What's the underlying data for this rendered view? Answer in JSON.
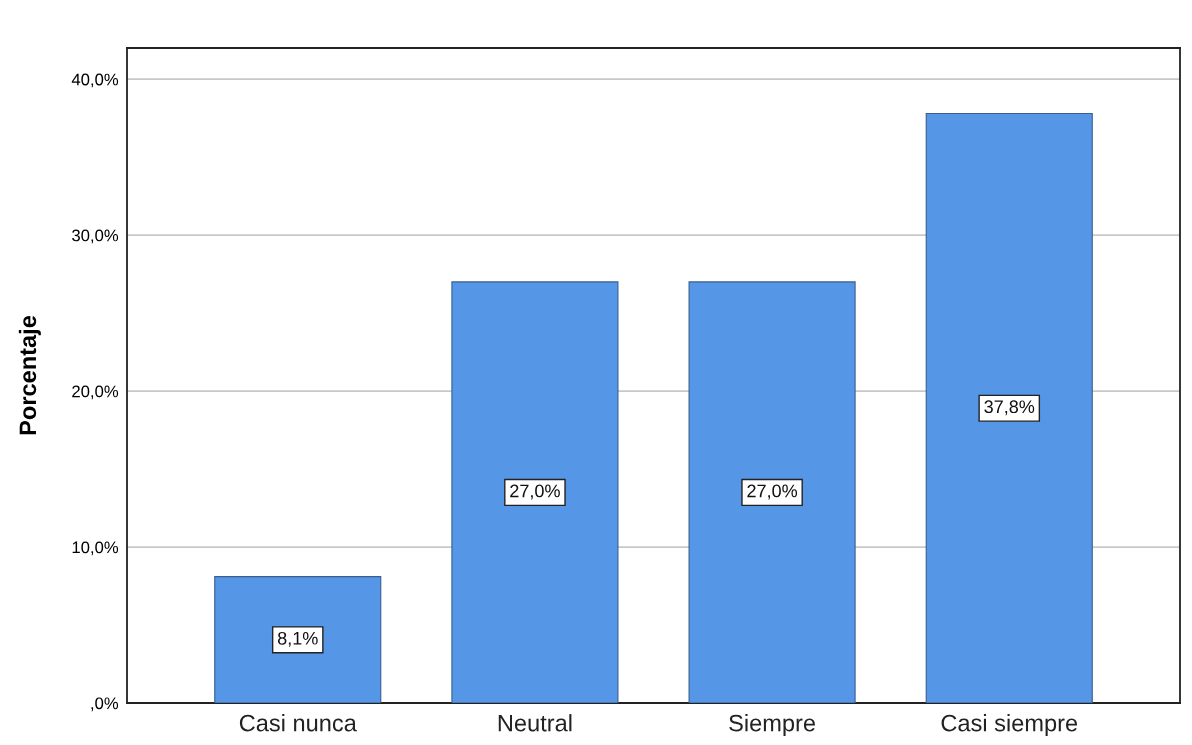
{
  "chart_data": {
    "type": "bar",
    "ylabel": "Porcentaje",
    "categories": [
      "Casi nunca",
      "Neutral",
      "Siempre",
      "Casi siempre"
    ],
    "values": [
      8.1,
      27.0,
      27.0,
      37.8
    ],
    "value_labels": [
      "8,1%",
      "27,0%",
      "27,0%",
      "37,8%"
    ],
    "color": "#5596e6",
    "ylim": [
      0,
      42
    ],
    "yticks": [
      {
        "value": 0,
        "label": ",0%"
      },
      {
        "value": 10,
        "label": "10,0%"
      },
      {
        "value": 20,
        "label": "20,0%"
      },
      {
        "value": 30,
        "label": "30,0%"
      },
      {
        "value": 40,
        "label": "40,0%"
      }
    ],
    "grid": "y"
  }
}
